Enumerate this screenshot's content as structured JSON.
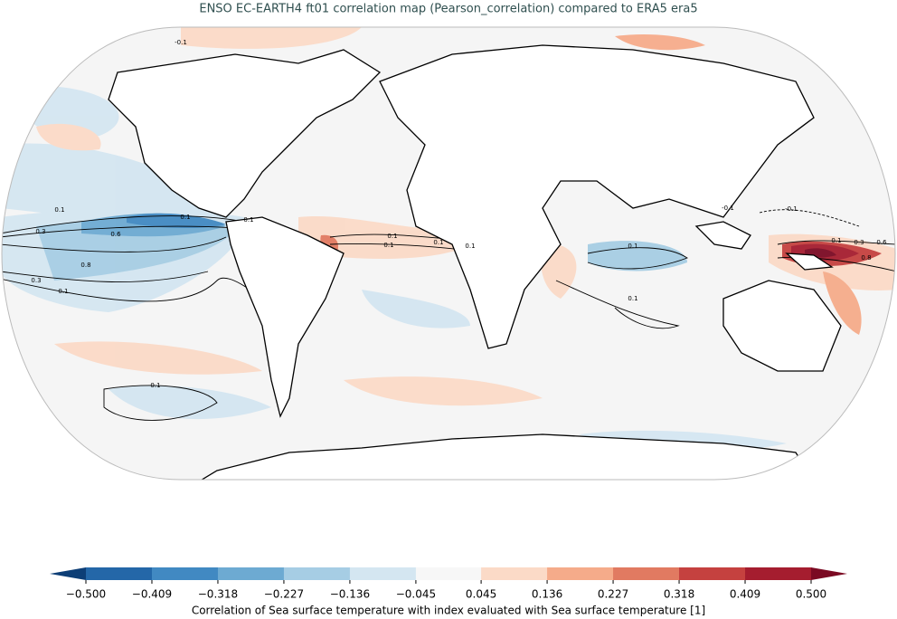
{
  "title": "ENSO EC-EARTH4 ft01 correlation map (Pearson_correlation) compared to ERA5 era5",
  "colorbar": {
    "ticks": [
      {
        "value": -0.5,
        "label": "−0.500"
      },
      {
        "value": -0.409,
        "label": "−0.409"
      },
      {
        "value": -0.318,
        "label": "−0.318"
      },
      {
        "value": -0.227,
        "label": "−0.227"
      },
      {
        "value": -0.136,
        "label": "−0.136"
      },
      {
        "value": -0.045,
        "label": "−0.045"
      },
      0.045,
      0.136,
      0.227,
      0.318,
      0.409,
      {
        "value": 0.5,
        "label": "0.500"
      }
    ],
    "colors": [
      "#2467a8",
      "#4189c2",
      "#6daad2",
      "#a6cde4",
      "#d4e6f1",
      "#f7f7f7",
      "#fbdac7",
      "#f5ab8a",
      "#e17a61",
      "#c5413f",
      "#a51d2f"
    ],
    "extend_colors": [
      "#0d3e76",
      "#7b0a23"
    ],
    "label": "Correlation of Sea surface temperature with index evaluated with Sea surface temperature [1]"
  },
  "contour_labels": [
    "-0.1",
    "0.1",
    "0.1",
    "0.1",
    "0.3",
    "0.6",
    "0.8",
    "0.3",
    "0.1",
    "0.1",
    "0.1",
    "0.1",
    "0.1",
    "0.1",
    "0.1",
    "-0.1",
    "0.1",
    "0.3",
    "0.6",
    "0.8",
    "-0.1",
    "0.1"
  ]
}
